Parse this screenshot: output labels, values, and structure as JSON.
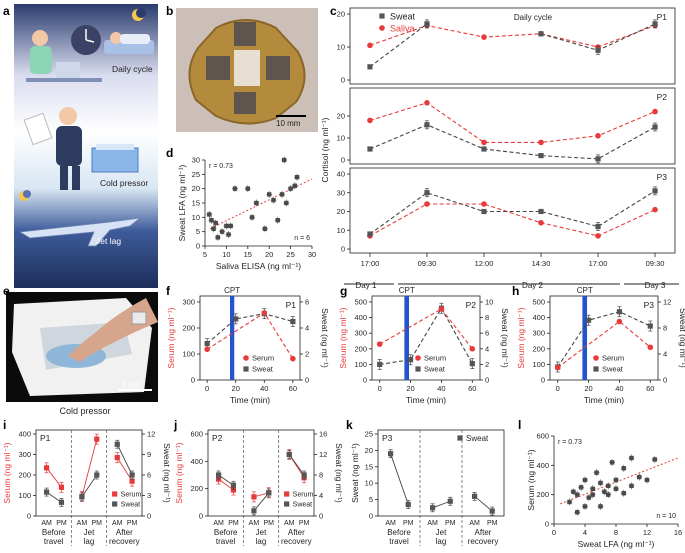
{
  "colors": {
    "sweat": "#555555",
    "saliva": "#e83a3a",
    "serum": "#e83a3a",
    "cpt": "#2255cc",
    "accent": "#e0412f"
  },
  "panel_labels": [
    "a",
    "b",
    "c",
    "d",
    "e",
    "f",
    "g",
    "h",
    "i",
    "j",
    "k",
    "l"
  ],
  "panel_a": {
    "labels": [
      "Daily cycle",
      "Cold pressor",
      "Jet lag"
    ]
  },
  "panel_b": {
    "scale": "10 mm"
  },
  "panel_e": {
    "scale": "5 cm",
    "caption": "Cold pressor"
  },
  "units": {
    "ngml": "(ng ml⁻¹)"
  },
  "chart_data": [
    {
      "id": "c",
      "type": "line",
      "title": "Daily cycle",
      "ylabel": "Cortisol (ng ml⁻¹)",
      "legend": [
        "Sweat",
        "Saliva"
      ],
      "categories": [
        "17:00",
        "09:30",
        "12:00",
        "14:30",
        "17:00",
        "09:30"
      ],
      "day_labels": [
        "Day 1",
        "Day 2",
        "Day 3"
      ],
      "subplots": [
        {
          "name": "P1",
          "ylim": [
            0,
            20
          ],
          "yticks": [
            0,
            10,
            20
          ],
          "series": [
            {
              "name": "Sweat",
              "values": [
                4,
                17,
                null,
                14,
                9,
                17
              ]
            },
            {
              "name": "Saliva",
              "values": [
                10.5,
                16.5,
                13,
                14,
                10,
                16.5
              ]
            }
          ]
        },
        {
          "name": "P2",
          "ylim": [
            0,
            30
          ],
          "yticks": [
            0,
            10,
            20
          ],
          "series": [
            {
              "name": "Sweat",
              "values": [
                5,
                16,
                5,
                2,
                0.5,
                15
              ]
            },
            {
              "name": "Saliva",
              "values": [
                18,
                26,
                8,
                8,
                11,
                22
              ]
            }
          ]
        },
        {
          "name": "P3",
          "ylim": [
            0,
            40
          ],
          "yticks": [
            0,
            10,
            20,
            30,
            40
          ],
          "series": [
            {
              "name": "Sweat",
              "values": [
                8,
                30,
                20,
                20,
                12,
                31
              ]
            },
            {
              "name": "Saliva",
              "values": [
                7,
                24,
                24,
                14,
                7,
                21
              ]
            }
          ]
        }
      ]
    },
    {
      "id": "d",
      "type": "scatter",
      "xlabel": "Saliva ELISA (ng ml⁻¹)",
      "ylabel": "Sweat LFA (ng ml⁻¹)",
      "xlim": [
        5,
        30
      ],
      "ylim": [
        0,
        30
      ],
      "xticks": [
        5,
        10,
        15,
        20,
        25,
        30
      ],
      "yticks": [
        0,
        5,
        10,
        15,
        20,
        25,
        30
      ],
      "annotation_r": "r = 0.73",
      "annotation_n": "n = 6",
      "x": [
        6,
        6.5,
        7,
        7.5,
        8,
        9,
        10,
        10.5,
        11,
        12,
        15,
        16,
        17,
        19,
        20,
        21,
        22,
        23,
        23.5,
        24,
        25,
        26,
        26.5
      ],
      "y": [
        11,
        9,
        6,
        8,
        3,
        5,
        7,
        4,
        7,
        20,
        20,
        10,
        15,
        6,
        18,
        16,
        9,
        18,
        30,
        15,
        20,
        21,
        24
      ]
    },
    {
      "id": "f",
      "type": "line",
      "name": "P1",
      "marker_label": "CPT",
      "xlabel": "Time (min)",
      "ylabel_left": "Serum (ng ml⁻¹)",
      "ylabel_right": "Sweat (ng ml⁻¹)",
      "x": [
        0,
        20,
        40,
        60
      ],
      "xlim": [
        -5,
        65
      ],
      "xticks": [
        0,
        20,
        40,
        60
      ],
      "ylim_left": [
        0,
        300
      ],
      "yticks_left": [
        0,
        100,
        200,
        300
      ],
      "ylim_right": [
        0,
        6
      ],
      "yticks_right": [
        0,
        2,
        4,
        6
      ],
      "series": [
        {
          "name": "Serum",
          "values": [
            118,
            null,
            258,
            82
          ]
        },
        {
          "name": "Sweat",
          "values": [
            2.8,
            4.7,
            5.1,
            4.5
          ]
        }
      ],
      "legend": [
        "Serum",
        "Sweat"
      ]
    },
    {
      "id": "g",
      "type": "line",
      "name": "P2",
      "marker_label": "CPT",
      "xlabel": "Time (min)",
      "ylabel_left": "Serum (ng ml⁻¹)",
      "ylabel_right": "Sweat (ng ml⁻¹)",
      "x": [
        0,
        20,
        40,
        60
      ],
      "xlim": [
        -5,
        65
      ],
      "xticks": [
        0,
        20,
        40,
        60
      ],
      "ylim_left": [
        0,
        500
      ],
      "yticks_left": [
        0,
        100,
        200,
        300,
        400,
        500
      ],
      "ylim_right": [
        0,
        10
      ],
      "yticks_right": [
        0,
        2,
        4,
        6,
        8,
        10
      ],
      "series": [
        {
          "name": "Serum",
          "values": [
            230,
            null,
            455,
            200
          ]
        },
        {
          "name": "Sweat",
          "values": [
            2,
            2.6,
            9.2,
            2.1
          ]
        }
      ],
      "legend": [
        "Serum",
        "Sweat"
      ]
    },
    {
      "id": "h",
      "type": "line",
      "name": "P3",
      "marker_label": "CPT",
      "xlabel": "Time (min)",
      "ylabel_left": "Serum (ng ml⁻¹)",
      "ylabel_right": "Sweat (ng ml⁻¹)",
      "x": [
        0,
        20,
        40,
        60
      ],
      "xlim": [
        -5,
        65
      ],
      "xticks": [
        0,
        20,
        40,
        60
      ],
      "ylim_left": [
        0,
        500
      ],
      "yticks_left": [
        0,
        100,
        200,
        300,
        400,
        500
      ],
      "ylim_right": [
        0,
        12
      ],
      "yticks_right": [
        0,
        4,
        8,
        12
      ],
      "series": [
        {
          "name": "Serum",
          "values": [
            80,
            null,
            375,
            210
          ]
        },
        {
          "name": "Sweat",
          "values": [
            2,
            9.2,
            10.5,
            8.3
          ]
        }
      ],
      "legend": [
        "Serum",
        "Sweat"
      ]
    },
    {
      "id": "i",
      "type": "line",
      "name": "P1",
      "ylabel_left": "Serum (ng ml⁻¹)",
      "ylabel_right": "Sweat (ng ml⁻¹)",
      "ylim_left": [
        0,
        400
      ],
      "yticks_left": [
        0,
        100,
        200,
        300,
        400
      ],
      "ylim_right": [
        0,
        12
      ],
      "yticks_right": [
        0,
        3,
        6,
        9,
        12
      ],
      "ticks": [
        "AM",
        "PM"
      ],
      "groups": [
        "Before travel",
        "Jet lag",
        "After recovery"
      ],
      "serum": [
        [
          235,
          140
        ],
        [
          95,
          375
        ],
        [
          285,
          170
        ]
      ],
      "sweat": [
        [
          3.5,
          2
        ],
        [
          2.8,
          6
        ],
        [
          10.5,
          6
        ]
      ],
      "legend": [
        "Serum",
        "Sweat"
      ]
    },
    {
      "id": "j",
      "type": "line",
      "name": "P2",
      "ylabel_left": "Serum (ng ml⁻¹)",
      "ylabel_right": "Sweat (ng ml⁻¹)",
      "ylim_left": [
        0,
        600
      ],
      "yticks_left": [
        0,
        200,
        400,
        600
      ],
      "ylim_right": [
        0,
        16
      ],
      "yticks_right": [
        0,
        4,
        8,
        12,
        16
      ],
      "ticks": [
        "AM",
        "PM"
      ],
      "groups": [
        "Before travel",
        "Jet lag",
        "After recovery"
      ],
      "serum": [
        [
          270,
          190
        ],
        [
          140,
          170
        ],
        [
          450,
          280
        ]
      ],
      "sweat": [
        [
          8,
          6
        ],
        [
          1,
          4.5
        ],
        [
          12,
          8
        ]
      ],
      "legend": [
        "Serum",
        "Sweat"
      ]
    },
    {
      "id": "k",
      "type": "line",
      "name": "P3",
      "ylabel": "Sweat (ng ml⁻¹)",
      "ylim": [
        0,
        25
      ],
      "yticks": [
        0,
        5,
        10,
        15,
        20,
        25
      ],
      "ticks": [
        "AM",
        "PM"
      ],
      "groups": [
        "Before travel",
        "Jet lag",
        "After recovery"
      ],
      "sweat": [
        [
          19,
          3.5
        ],
        [
          2.5,
          4.5
        ],
        [
          6,
          1.5
        ]
      ],
      "legend": [
        "Sweat"
      ]
    },
    {
      "id": "l",
      "type": "scatter",
      "xlabel": "Sweat LFA (ng ml⁻¹)",
      "ylabel": "Serum (ng ml⁻¹)",
      "xlim": [
        0,
        16
      ],
      "ylim": [
        0,
        600
      ],
      "xticks": [
        0,
        4,
        8,
        12,
        16
      ],
      "yticks": [
        0,
        200,
        400,
        600
      ],
      "annotation_r": "r = 0.73",
      "annotation_n": "n = 10",
      "x": [
        2,
        2.5,
        3,
        3,
        3.5,
        4,
        4,
        4.5,
        5,
        5,
        5.5,
        6,
        6,
        6.5,
        7,
        7,
        7.5,
        8,
        8,
        9,
        9,
        10,
        10,
        11,
        12,
        13
      ],
      "y": [
        150,
        220,
        200,
        80,
        250,
        120,
        300,
        180,
        240,
        200,
        350,
        120,
        280,
        220,
        260,
        200,
        420,
        300,
        240,
        380,
        210,
        450,
        260,
        320,
        300,
        440
      ]
    }
  ]
}
